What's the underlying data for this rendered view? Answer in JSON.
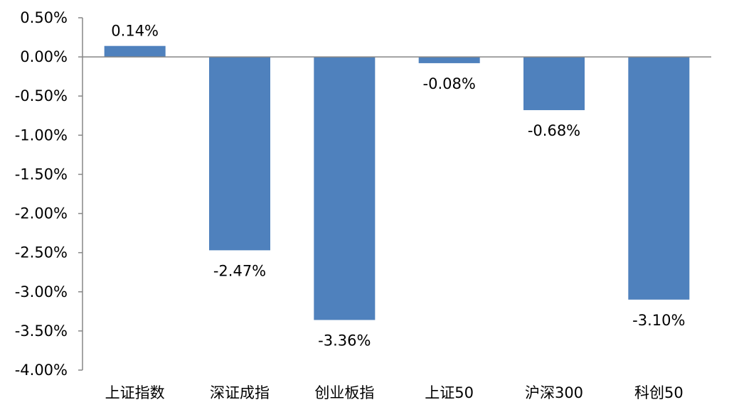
{
  "chart_data": {
    "type": "bar",
    "title": "",
    "xlabel": "",
    "ylabel": "",
    "categories": [
      "上证指数",
      "深证成指",
      "创业板指",
      "上证50",
      "沪深300",
      "科创50"
    ],
    "values": [
      0.14,
      -2.47,
      -3.36,
      -0.08,
      -0.68,
      -3.1
    ],
    "data_labels": [
      "0.14%",
      "-2.47%",
      "-3.36%",
      "-0.08%",
      "-0.68%",
      "-3.10%"
    ],
    "ylim": [
      -4.0,
      0.5
    ],
    "yticks": [
      0.5,
      0.0,
      -0.5,
      -1.0,
      -1.5,
      -2.0,
      -2.5,
      -3.0,
      -3.5,
      -4.0
    ],
    "ytick_labels": [
      "0.50%",
      "0.00%",
      "-0.50%",
      "-1.00%",
      "-1.50%",
      "-2.00%",
      "-2.50%",
      "-3.00%",
      "-3.50%",
      "-4.00%"
    ],
    "grid": false,
    "legend": "none",
    "bar_color": "#4F81BD",
    "axis_color": "#868686"
  }
}
